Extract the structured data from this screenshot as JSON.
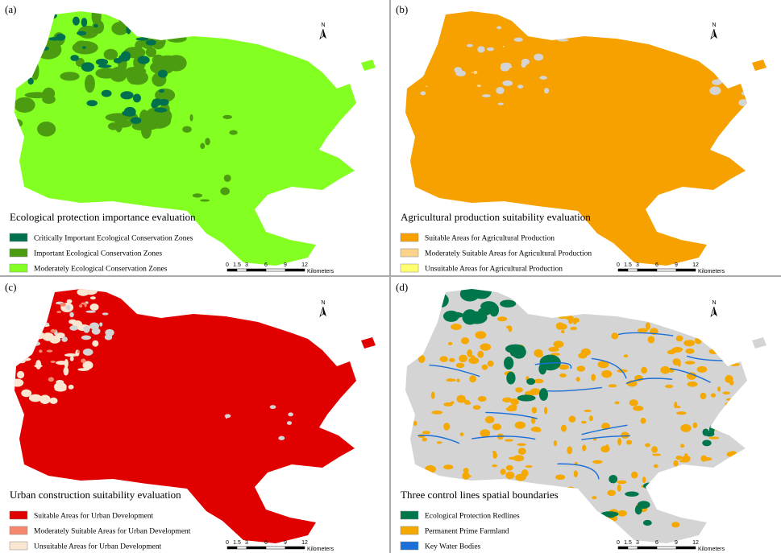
{
  "panels": [
    {
      "label": "(a)",
      "title": "Ecological protection importance evaluation",
      "north": "N",
      "legend": [
        {
          "label": "Critically Important Ecological Conservation Zones",
          "color": "#00704f"
        },
        {
          "label": "Important Ecological Conservation Zones",
          "color": "#4c9c12"
        },
        {
          "label": "Moderately Ecological Conservation Zones",
          "color": "#84ff22"
        }
      ],
      "scale_bar": {
        "ticks": [
          0,
          1.5,
          3,
          6,
          9,
          12
        ],
        "unit": "Kilometers"
      }
    },
    {
      "label": "(b)",
      "title": "Agricultural production suitability evaluation",
      "north": "N",
      "legend": [
        {
          "label": "Suitable Areas for Agricultural Production",
          "color": "#f7a100"
        },
        {
          "label": "Moderately Suitable Areas for Agricultural Production",
          "color": "#fbd38c"
        },
        {
          "label": "Unsuitable Areas for Agricultural Production",
          "color": "#ffff70"
        }
      ],
      "scale_bar": {
        "ticks": [
          0,
          1.5,
          3,
          6,
          9,
          12
        ],
        "unit": "Kilometers"
      }
    },
    {
      "label": "(c)",
      "title": "Urban construction suitability evaluation",
      "north": "N",
      "legend": [
        {
          "label": "Suitable Areas for Urban Development",
          "color": "#e00000"
        },
        {
          "label": "Moderately Suitable Areas for Urban Development",
          "color": "#f5876e"
        },
        {
          "label": "Unsuitable Areas for Urban Development",
          "color": "#fbe6d2"
        }
      ],
      "scale_bar": {
        "ticks": [
          0,
          1.5,
          3,
          6,
          9,
          12
        ],
        "unit": "Kilometers"
      }
    },
    {
      "label": "(d)",
      "title": "Three control lines spatial boundaries",
      "north": "N",
      "legend": [
        {
          "label": "Ecological Protection Redlines",
          "color": "#00774a"
        },
        {
          "label": "Permanent Prime Farmland",
          "color": "#f5a800"
        },
        {
          "label": "Key Water Bodies",
          "color": "#1a6fd8"
        }
      ],
      "scale_bar": {
        "ticks": [
          0,
          1.5,
          3,
          6,
          9,
          12
        ],
        "unit": "Kilometers"
      }
    }
  ]
}
